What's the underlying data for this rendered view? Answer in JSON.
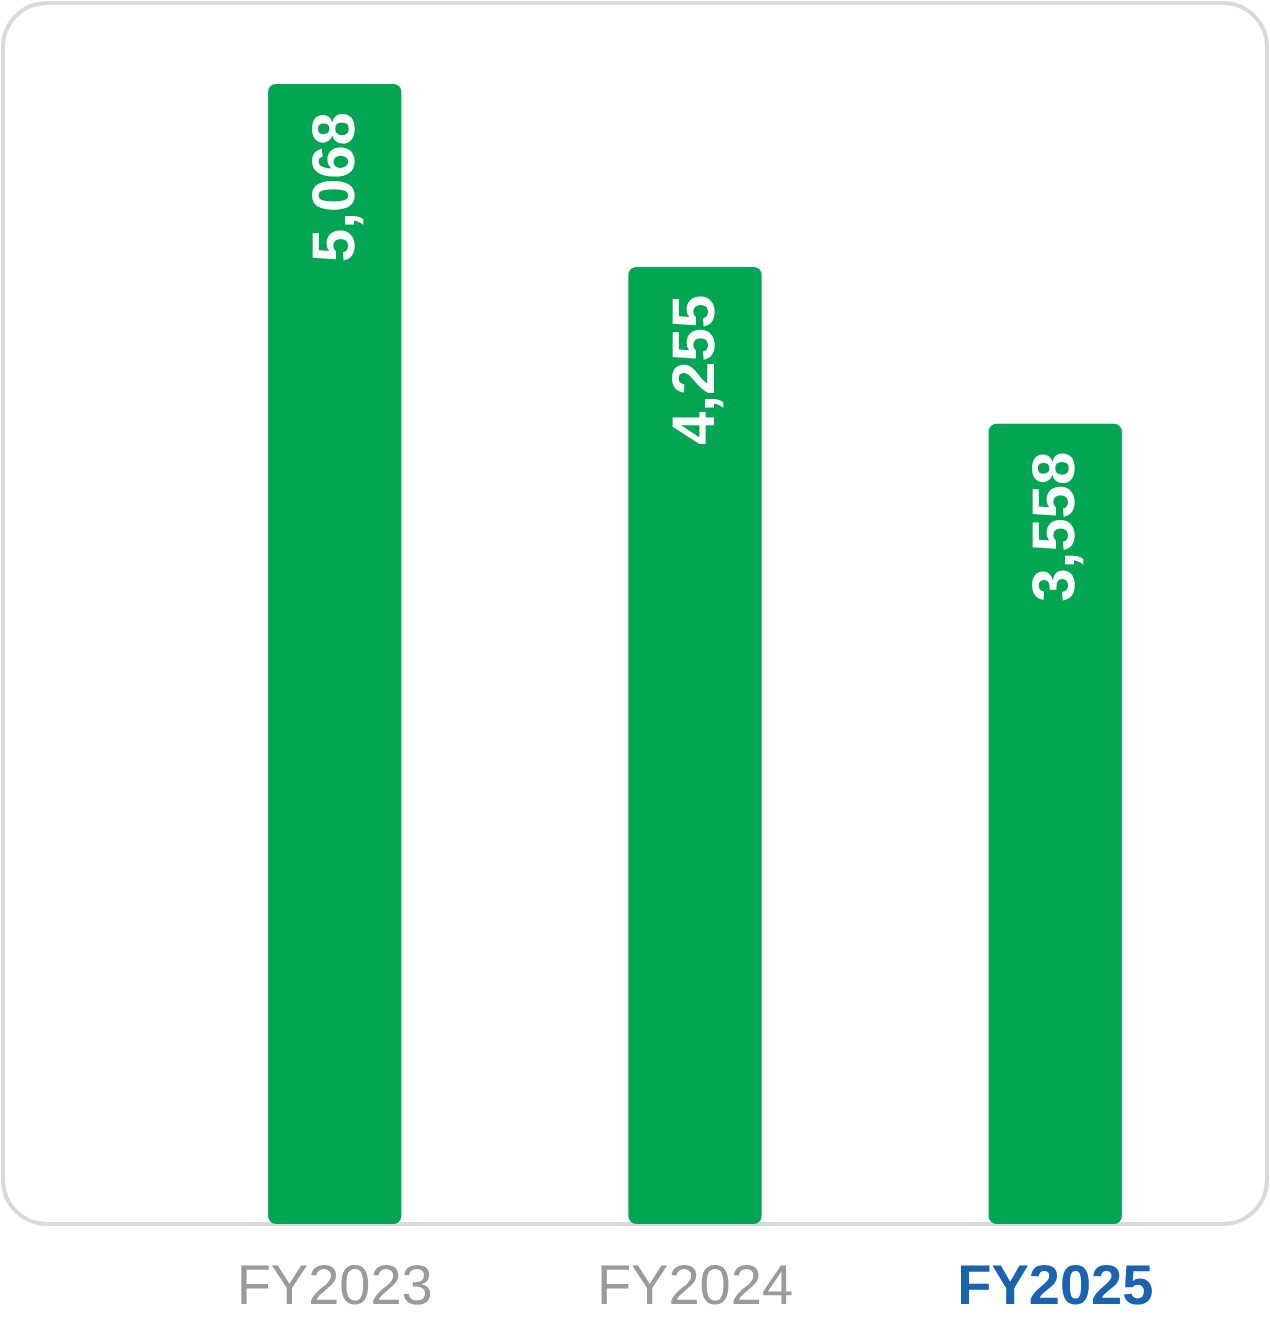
{
  "chart_data": {
    "type": "bar",
    "categories": [
      "FY2023",
      "FY2024",
      "FY2025"
    ],
    "values": [
      5068,
      4255,
      3558
    ],
    "colors": [
      "#00a651",
      "#00a651",
      "#00a651"
    ],
    "data_labels": true,
    "value_labels": [
      "5,068",
      "4,255",
      "3,558"
    ]
  }
}
